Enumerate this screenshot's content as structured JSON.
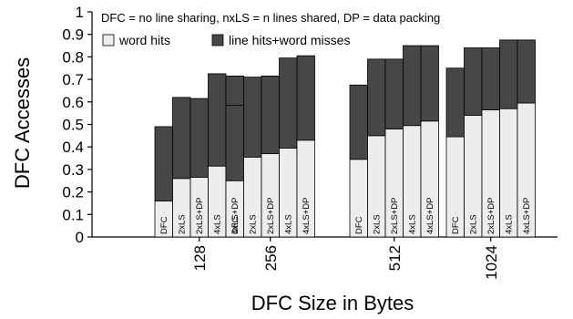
{
  "chart_data": {
    "type": "bar",
    "stacked": true,
    "note": "DFC = no line sharing, nxLS = n lines shared, DP = data packing",
    "ylabel": "DFC Accesses",
    "xlabel": "DFC Size in Bytes",
    "ylim": [
      0,
      1
    ],
    "yticks": [
      "0",
      "0.1",
      "0.2",
      "0.3",
      "0.4",
      "0.5",
      "0.6",
      "0.7",
      "0.8",
      "0.9",
      "1"
    ],
    "grid": false,
    "legend_position": "top-left",
    "groups": [
      "128",
      "256",
      "512",
      "1024"
    ],
    "bar_labels": [
      "DFC",
      "2xLS",
      "2xLS+DP",
      "4xLS",
      "4xLS+DP"
    ],
    "series": [
      {
        "name": "word hits",
        "color": "#ededed",
        "values": [
          [
            0.16,
            0.26,
            0.265,
            0.315,
            0.325
          ],
          [
            0.25,
            0.355,
            0.37,
            0.395,
            0.43
          ],
          [
            0.345,
            0.45,
            0.48,
            0.495,
            0.515
          ],
          [
            0.445,
            0.54,
            0.565,
            0.57,
            0.595
          ]
        ]
      },
      {
        "name": "line hits+word misses",
        "color": "#474747",
        "values": [
          [
            0.33,
            0.36,
            0.35,
            0.41,
            0.39
          ],
          [
            0.335,
            0.355,
            0.345,
            0.4,
            0.375
          ],
          [
            0.33,
            0.34,
            0.31,
            0.355,
            0.335
          ],
          [
            0.305,
            0.3,
            0.275,
            0.305,
            0.28
          ]
        ]
      }
    ]
  }
}
